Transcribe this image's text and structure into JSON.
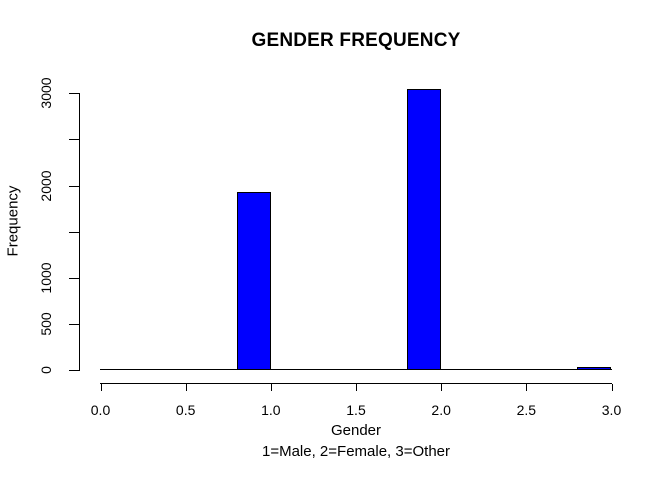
{
  "chart_data": {
    "type": "bar",
    "subtype": "histogram",
    "title": "GENDER FREQUENCY",
    "xlabel": "Gender",
    "x_sublabel": "1=Male, 2=Female, 3=Other",
    "ylabel": "Frequency",
    "xlim": [
      0.0,
      3.0
    ],
    "ylim": [
      0,
      3000
    ],
    "grid": false,
    "legend": false,
    "bar_fill_color": "#0000ff",
    "bar_border_color": "#000000",
    "bin_width": 0.2,
    "x_ticks": [
      {
        "value": 0.0,
        "label": "0.0"
      },
      {
        "value": 0.5,
        "label": "0.5"
      },
      {
        "value": 1.0,
        "label": "1.0"
      },
      {
        "value": 1.5,
        "label": "1.5"
      },
      {
        "value": 2.0,
        "label": "2.0"
      },
      {
        "value": 2.5,
        "label": "2.5"
      },
      {
        "value": 3.0,
        "label": "3.0"
      }
    ],
    "y_ticks": [
      {
        "value": 0,
        "label": "0"
      },
      {
        "value": 500,
        "label": "500"
      },
      {
        "value": 1000,
        "label": "1000"
      },
      {
        "value": 1500,
        "label": ""
      },
      {
        "value": 2000,
        "label": "2000"
      },
      {
        "value": 2500,
        "label": ""
      },
      {
        "value": 3000,
        "label": "3000"
      }
    ],
    "bars": [
      {
        "x_from": 0.8,
        "x_to": 1.0,
        "value": 1930,
        "category": "Male"
      },
      {
        "x_from": 1.8,
        "x_to": 2.0,
        "value": 3050,
        "category": "Female"
      },
      {
        "x_from": 2.8,
        "x_to": 3.0,
        "value": 30,
        "category": "Other"
      }
    ]
  }
}
